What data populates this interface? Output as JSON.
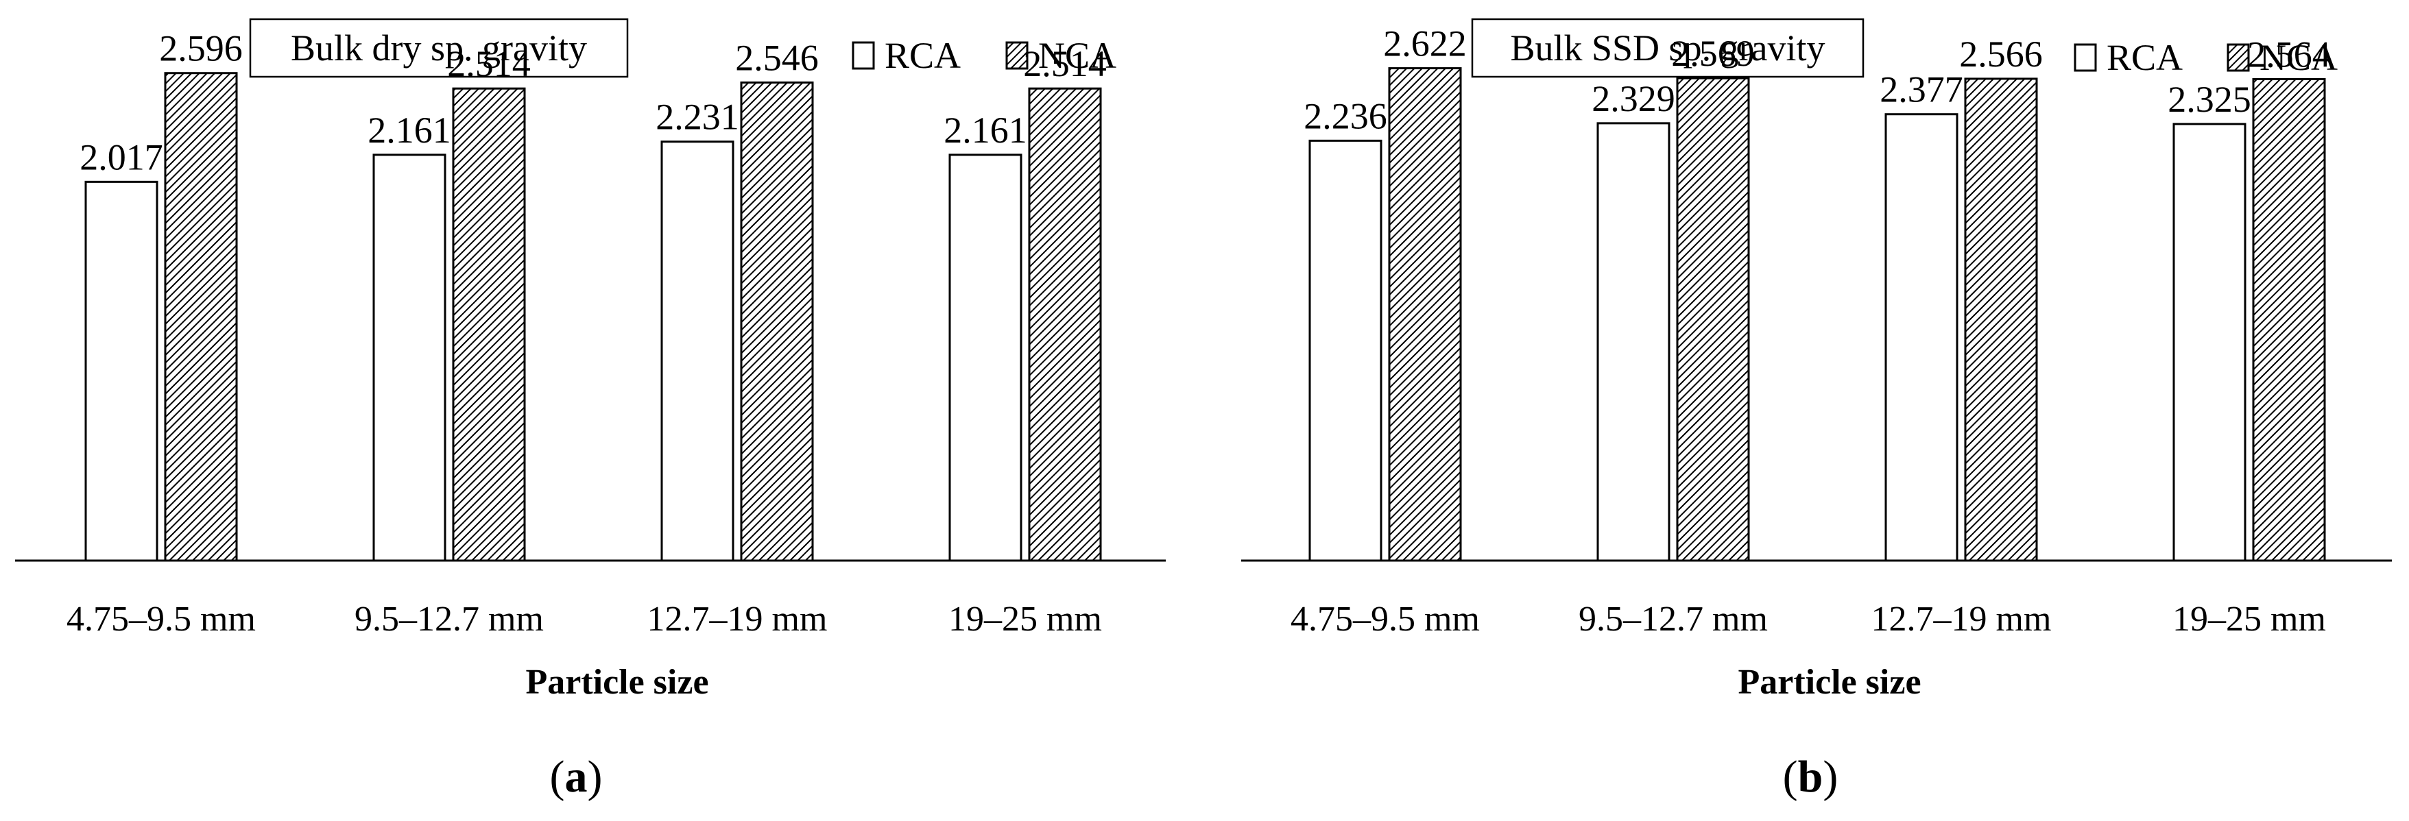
{
  "colors": {
    "rca_fill": "#ffffff",
    "nca_hatch": "#000000",
    "axis": "#000000"
  },
  "chart_data": [
    {
      "type": "bar",
      "title": "Bulk dry sp. gravity",
      "panel_label": "a",
      "categories": [
        "4.75–9.5 mm",
        "9.5–12.7 mm",
        "12.7–19 mm",
        "19–25 mm"
      ],
      "xlabel": "Particle size",
      "ylabel": "",
      "ylim": [
        0,
        2.7
      ],
      "legend_position": "top-right",
      "grid": false,
      "series": [
        {
          "name": "RCA",
          "values": [
            2.017,
            2.161,
            2.231,
            2.161
          ],
          "labels": [
            "2.017",
            "2.161",
            "2.231",
            "2.161"
          ]
        },
        {
          "name": "NCA",
          "values": [
            2.596,
            2.514,
            2.546,
            2.514
          ],
          "labels": [
            "2.596",
            "2.514",
            "2.546",
            "2.514"
          ]
        }
      ]
    },
    {
      "type": "bar",
      "title": "Bulk SSD sp. gravity",
      "panel_label": "b",
      "categories": [
        "4.75–9.5 mm",
        "9.5–12.7 mm",
        "12.7–19 mm",
        "19–25 mm"
      ],
      "xlabel": "Particle size",
      "ylabel": "",
      "ylim": [
        0,
        2.7
      ],
      "legend_position": "top-right",
      "grid": false,
      "series": [
        {
          "name": "RCA",
          "values": [
            2.236,
            2.329,
            2.377,
            2.325
          ],
          "labels": [
            "2.236",
            "2.329",
            "2.377",
            "2.325"
          ]
        },
        {
          "name": "NCA",
          "values": [
            2.622,
            2.569,
            2.566,
            2.564
          ],
          "labels": [
            "2.622",
            "2.569",
            "2.566",
            "2.564"
          ]
        }
      ]
    }
  ]
}
